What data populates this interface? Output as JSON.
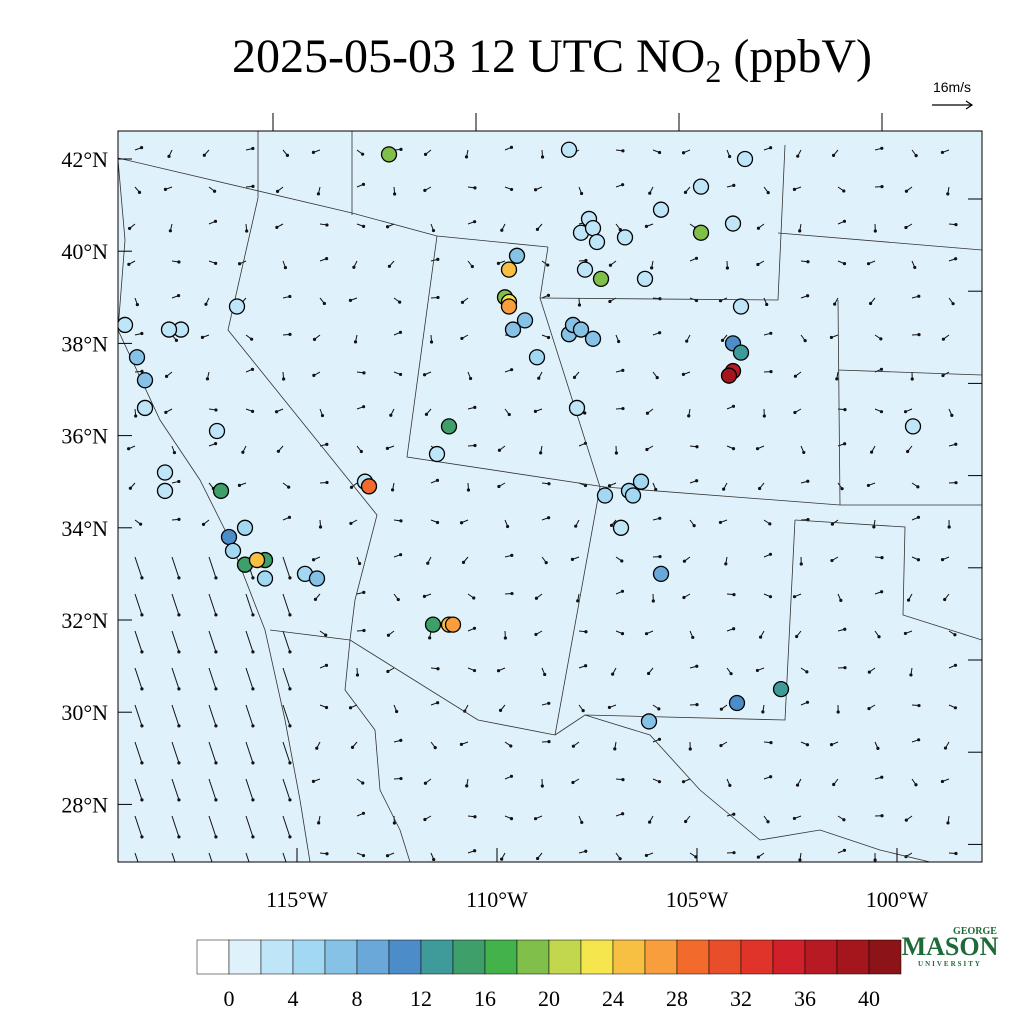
{
  "title": "2025-05-03 12 UTC NO",
  "title_subscript": "2",
  "title_suffix": "(ppbV)",
  "wind_reference": "16m/s",
  "logo": {
    "top": "GEORGE",
    "main": "MASON",
    "bottom": "UNIVERSITY"
  },
  "map": {
    "lat_ticks": [
      {
        "value": 42,
        "label": "42°N"
      },
      {
        "value": 40,
        "label": "40°N"
      },
      {
        "value": 38,
        "label": "38°N"
      },
      {
        "value": 36,
        "label": "36°N"
      },
      {
        "value": 34,
        "label": "34°N"
      },
      {
        "value": 32,
        "label": "32°N"
      },
      {
        "value": 30,
        "label": "30°N"
      },
      {
        "value": 28,
        "label": "28°N"
      }
    ],
    "lon_ticks": [
      {
        "value": -115,
        "label": "115°W"
      },
      {
        "value": -110,
        "label": "110°W"
      },
      {
        "value": -105,
        "label": "105°W"
      },
      {
        "value": -100,
        "label": "100°W"
      }
    ],
    "stations": [
      {
        "lon": -112.7,
        "lat": 42.1,
        "value": 18
      },
      {
        "lon": -108.2,
        "lat": 42.2,
        "value": 2
      },
      {
        "lon": -103.8,
        "lat": 42.0,
        "value": 2
      },
      {
        "lon": -104.9,
        "lat": 41.4,
        "value": 2
      },
      {
        "lon": -105.9,
        "lat": 40.9,
        "value": 2
      },
      {
        "lon": -104.1,
        "lat": 40.6,
        "value": 2
      },
      {
        "lon": -104.9,
        "lat": 40.4,
        "value": 18
      },
      {
        "lon": -107.7,
        "lat": 40.7,
        "value": 2
      },
      {
        "lon": -107.9,
        "lat": 40.4,
        "value": 2
      },
      {
        "lon": -107.6,
        "lat": 40.5,
        "value": 2
      },
      {
        "lon": -107.5,
        "lat": 40.2,
        "value": 2
      },
      {
        "lon": -106.8,
        "lat": 40.3,
        "value": 2
      },
      {
        "lon": -107.8,
        "lat": 39.6,
        "value": 2
      },
      {
        "lon": -107.4,
        "lat": 39.4,
        "value": 18
      },
      {
        "lon": -106.3,
        "lat": 39.4,
        "value": 2
      },
      {
        "lon": -109.5,
        "lat": 39.9,
        "value": 6
      },
      {
        "lon": -109.7,
        "lat": 39.6,
        "value": 24
      },
      {
        "lon": -109.8,
        "lat": 39.0,
        "value": 18
      },
      {
        "lon": -109.7,
        "lat": 38.9,
        "value": 22
      },
      {
        "lon": -109.7,
        "lat": 38.8,
        "value": 26
      },
      {
        "lon": -109.3,
        "lat": 38.5,
        "value": 6
      },
      {
        "lon": -109.6,
        "lat": 38.3,
        "value": 6
      },
      {
        "lon": -109.0,
        "lat": 37.7,
        "value": 4
      },
      {
        "lon": -108.2,
        "lat": 38.2,
        "value": 6
      },
      {
        "lon": -108.1,
        "lat": 38.4,
        "value": 6
      },
      {
        "lon": -107.9,
        "lat": 38.3,
        "value": 6
      },
      {
        "lon": -107.6,
        "lat": 38.1,
        "value": 6
      },
      {
        "lon": -108.0,
        "lat": 36.6,
        "value": 2
      },
      {
        "lon": -103.9,
        "lat": 38.8,
        "value": 2
      },
      {
        "lon": -104.1,
        "lat": 38.0,
        "value": 10
      },
      {
        "lon": -103.9,
        "lat": 37.8,
        "value": 12
      },
      {
        "lon": -104.1,
        "lat": 37.4,
        "value": 36
      },
      {
        "lon": -104.2,
        "lat": 37.3,
        "value": 38
      },
      {
        "lon": -99.6,
        "lat": 36.2,
        "value": 2
      },
      {
        "lon": -106.7,
        "lat": 34.8,
        "value": 4
      },
      {
        "lon": -106.6,
        "lat": 34.7,
        "value": 4
      },
      {
        "lon": -107.3,
        "lat": 34.7,
        "value": 4
      },
      {
        "lon": -106.9,
        "lat": 34.0,
        "value": 2
      },
      {
        "lon": -106.4,
        "lat": 35.0,
        "value": 4
      },
      {
        "lon": -105.9,
        "lat": 33.0,
        "value": 8
      },
      {
        "lon": -106.2,
        "lat": 29.8,
        "value": 6
      },
      {
        "lon": -104.0,
        "lat": 30.2,
        "value": 10
      },
      {
        "lon": -102.9,
        "lat": 30.5,
        "value": 12
      },
      {
        "lon": -111.6,
        "lat": 31.9,
        "value": 14
      },
      {
        "lon": -111.2,
        "lat": 31.9,
        "value": 24
      },
      {
        "lon": -111.1,
        "lat": 31.9,
        "value": 26
      },
      {
        "lon": -111.2,
        "lat": 36.2,
        "value": 14
      },
      {
        "lon": -111.5,
        "lat": 35.6,
        "value": 2
      },
      {
        "lon": -113.3,
        "lat": 35.0,
        "value": 2
      },
      {
        "lon": -113.2,
        "lat": 34.9,
        "value": 28
      },
      {
        "lon": -116.5,
        "lat": 38.8,
        "value": 2
      },
      {
        "lon": -117.9,
        "lat": 38.3,
        "value": 2
      },
      {
        "lon": -118.2,
        "lat": 38.3,
        "value": 2
      },
      {
        "lon": -119.3,
        "lat": 38.4,
        "value": 2
      },
      {
        "lon": -119.0,
        "lat": 37.7,
        "value": 6
      },
      {
        "lon": -118.8,
        "lat": 37.2,
        "value": 6
      },
      {
        "lon": -118.8,
        "lat": 36.6,
        "value": 2
      },
      {
        "lon": -117.0,
        "lat": 36.1,
        "value": 2
      },
      {
        "lon": -118.3,
        "lat": 35.2,
        "value": 2
      },
      {
        "lon": -118.3,
        "lat": 34.8,
        "value": 2
      },
      {
        "lon": -116.9,
        "lat": 34.8,
        "value": 14
      },
      {
        "lon": -116.3,
        "lat": 34.0,
        "value": 4
      },
      {
        "lon": -116.7,
        "lat": 33.8,
        "value": 10
      },
      {
        "lon": -116.6,
        "lat": 33.5,
        "value": 4
      },
      {
        "lon": -116.3,
        "lat": 33.2,
        "value": 14
      },
      {
        "lon": -115.8,
        "lat": 33.3,
        "value": 14
      },
      {
        "lon": -116.0,
        "lat": 33.3,
        "value": 24
      },
      {
        "lon": -114.8,
        "lat": 33.0,
        "value": 4
      },
      {
        "lon": -114.5,
        "lat": 32.9,
        "value": 6
      },
      {
        "lon": -115.8,
        "lat": 32.9,
        "value": 4
      }
    ]
  },
  "colorbar": {
    "lim": [
      -2,
      42
    ],
    "ticks": [
      0,
      4,
      8,
      12,
      16,
      20,
      24,
      28,
      32,
      36,
      40
    ],
    "colors": [
      "#ffffff",
      "#dff1fb",
      "#bfe6f8",
      "#a3d8f2",
      "#86c2e6",
      "#6aa8da",
      "#4c8cc8",
      "#3f9a9a",
      "#3f9f6a",
      "#43b24b",
      "#80c04a",
      "#c2d64e",
      "#f6e64e",
      "#f8c043",
      "#f89e3c",
      "#f36b2c",
      "#e84e2a",
      "#e0342a",
      "#d0202a",
      "#b81a24",
      "#a4161c",
      "#8c1419"
    ]
  }
}
